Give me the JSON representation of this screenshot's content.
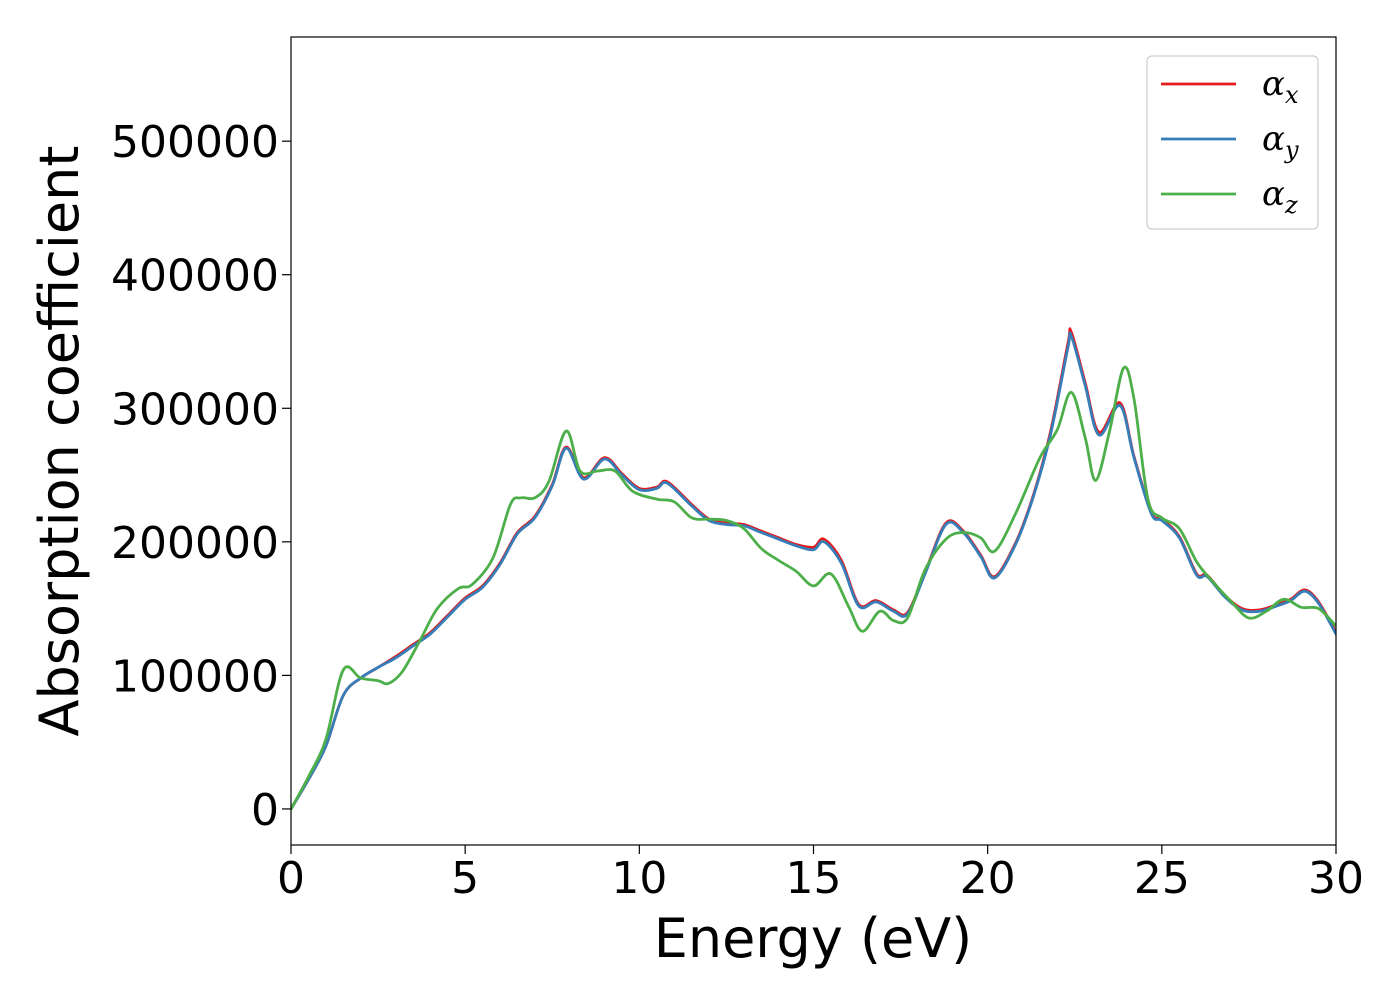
{
  "chart_data": {
    "type": "line",
    "xlabel": "Energy (eV)",
    "ylabel": "Absorption coefficient",
    "xlim": [
      0,
      30
    ],
    "ylim": [
      -27000,
      578000
    ],
    "xticks": [
      0,
      5,
      10,
      15,
      20,
      25,
      30
    ],
    "yticks": [
      0,
      100000,
      200000,
      300000,
      400000,
      500000
    ],
    "grid": false,
    "legend_position": "top-right",
    "series": [
      {
        "name": "αx",
        "symbol": "α",
        "subscript": "x",
        "color": "#e41a1c",
        "x": [
          0,
          0.5,
          1,
          1.5,
          2,
          2.5,
          3,
          3.5,
          4,
          4.5,
          5,
          5.5,
          6,
          6.5,
          7,
          7.5,
          7.9,
          8.4,
          9,
          9.5,
          10,
          10.5,
          10.8,
          11.5,
          12,
          12.5,
          13,
          13.5,
          14,
          14.5,
          15,
          15.3,
          15.8,
          16.3,
          16.8,
          17.3,
          17.7,
          18.2,
          18.8,
          19.3,
          19.8,
          20.2,
          20.8,
          21.3,
          21.8,
          22.3,
          22.4,
          22.8,
          23.2,
          23.8,
          24.2,
          24.7,
          25,
          25.5,
          26,
          26.3,
          26.8,
          27.3,
          27.8,
          28.3,
          28.7,
          29.1,
          29.5,
          30
        ],
        "y": [
          0,
          22000,
          47000,
          85000,
          98000,
          106000,
          114000,
          123000,
          132000,
          145000,
          158000,
          167000,
          184000,
          207000,
          219000,
          243000,
          271000,
          248000,
          263000,
          251000,
          240000,
          241000,
          245000,
          228000,
          217000,
          214000,
          213000,
          208000,
          203000,
          198000,
          196000,
          202000,
          186000,
          153000,
          156000,
          149000,
          147000,
          177000,
          214000,
          208000,
          190000,
          174000,
          199000,
          234000,
          282000,
          348000,
          357000,
          319000,
          282000,
          304000,
          264000,
          222000,
          217000,
          204000,
          176000,
          175000,
          160000,
          150000,
          149000,
          153000,
          157000,
          164000,
          155000,
          132000
        ]
      },
      {
        "name": "αy",
        "symbol": "α",
        "subscript": "y",
        "color": "#377eb8",
        "x": [
          0,
          0.5,
          1,
          1.5,
          2,
          2.5,
          3,
          3.5,
          4,
          4.5,
          5,
          5.5,
          6,
          6.5,
          7,
          7.5,
          7.9,
          8.4,
          9,
          9.5,
          10,
          10.5,
          10.8,
          11.5,
          12,
          12.5,
          13,
          13.5,
          14,
          14.5,
          15,
          15.3,
          15.8,
          16.3,
          16.8,
          17.3,
          17.7,
          18.2,
          18.8,
          19.3,
          19.8,
          20.2,
          20.8,
          21.3,
          21.8,
          22.3,
          22.4,
          22.8,
          23.2,
          23.8,
          24.2,
          24.7,
          25,
          25.5,
          26,
          26.3,
          26.8,
          27.3,
          27.8,
          28.3,
          28.7,
          29.1,
          29.5,
          30
        ],
        "y": [
          0,
          22000,
          47000,
          85000,
          98000,
          106000,
          113000,
          122000,
          131000,
          144000,
          157000,
          166000,
          183000,
          206000,
          218000,
          242000,
          270000,
          247000,
          262000,
          250000,
          239000,
          240000,
          244000,
          227000,
          216000,
          213000,
          212000,
          207000,
          202000,
          197000,
          194000,
          200000,
          184000,
          152000,
          155000,
          148000,
          146000,
          176000,
          213000,
          207000,
          189000,
          173000,
          198000,
          233000,
          280000,
          345000,
          354000,
          317000,
          280000,
          302000,
          263000,
          221000,
          216000,
          203000,
          175000,
          174000,
          159000,
          149000,
          148000,
          152000,
          156000,
          163000,
          154000,
          131000
        ]
      },
      {
        "name": "αz",
        "symbol": "α",
        "subscript": "z",
        "color": "#4daf4a",
        "x": [
          0,
          0.5,
          1,
          1.5,
          2,
          2.5,
          2.8,
          3.2,
          3.7,
          4.2,
          4.8,
          5.2,
          5.8,
          6.3,
          6.6,
          7,
          7.4,
          7.9,
          8.3,
          8.8,
          9.3,
          9.8,
          10.5,
          11,
          11.5,
          12,
          12.5,
          13,
          13.5,
          14,
          14.5,
          15,
          15.5,
          16,
          16.4,
          16.9,
          17.3,
          17.7,
          18.2,
          18.8,
          19.3,
          19.8,
          20.2,
          20.8,
          21.5,
          22,
          22.4,
          22.8,
          23.1,
          23.5,
          23.9,
          24.2,
          24.6,
          25,
          25.5,
          26,
          26.4,
          27,
          27.5,
          28,
          28.5,
          29,
          29.5,
          30
        ],
        "y": [
          0,
          24000,
          52000,
          104000,
          98000,
          96000,
          94000,
          103000,
          126000,
          150000,
          165000,
          168000,
          188000,
          228000,
          233000,
          233000,
          245000,
          283000,
          253000,
          253000,
          253000,
          238000,
          232000,
          230000,
          218000,
          217000,
          216000,
          210000,
          195000,
          186000,
          178000,
          167000,
          176000,
          152000,
          133000,
          148000,
          141000,
          143000,
          179000,
          202000,
          207000,
          203000,
          193000,
          221000,
          263000,
          284000,
          312000,
          278000,
          246000,
          283000,
          330000,
          307000,
          232000,
          218000,
          210000,
          185000,
          172000,
          155000,
          143000,
          148000,
          157000,
          151000,
          150000,
          137000
        ]
      }
    ]
  }
}
